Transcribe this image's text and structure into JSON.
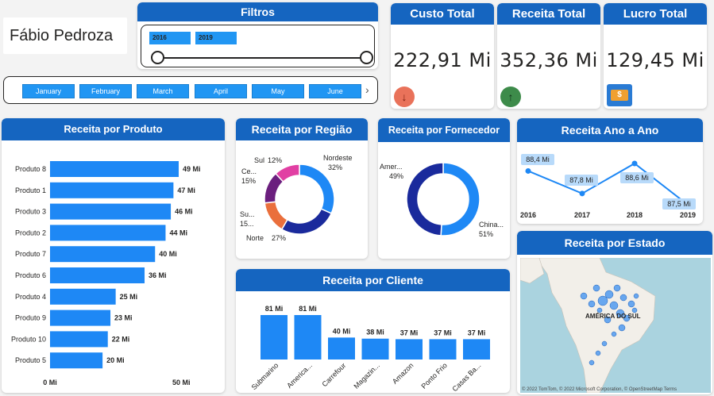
{
  "user": {
    "name": "Fábio Pedroza"
  },
  "filters": {
    "title": "Filtros",
    "year_start": "2016",
    "year_end": "2019",
    "months": [
      "January",
      "February",
      "March",
      "April",
      "May",
      "June"
    ]
  },
  "kpis": [
    {
      "title": "Custo Total",
      "value": "222,91 Mi",
      "icon": "down-arrow-icon",
      "color": "#e9725a"
    },
    {
      "title": "Receita Total",
      "value": "352,36 Mi",
      "icon": "up-arrow-icon",
      "color": "#3d8b4a"
    },
    {
      "title": "Lucro Total",
      "value": "129,45 Mi",
      "icon": "money-icon",
      "color": "#f0a030"
    }
  ],
  "colors": {
    "header": "#1565c0",
    "bar": "#1e88f5",
    "navy": "#1a2a9c"
  },
  "chart_data": [
    {
      "type": "bar",
      "title": "Receita por Produto",
      "orientation": "horizontal",
      "categories": [
        "Produto 8",
        "Produto 1",
        "Produto 3",
        "Produto 2",
        "Produto 7",
        "Produto 6",
        "Produto 4",
        "Produto 9",
        "Produto 10",
        "Produto 5"
      ],
      "values": [
        49,
        47,
        46,
        44,
        40,
        36,
        25,
        23,
        22,
        20
      ],
      "labels": [
        "49 Mi",
        "47 Mi",
        "46 Mi",
        "44 Mi",
        "40 Mi",
        "36 Mi",
        "25 Mi",
        "23 Mi",
        "22 Mi",
        "20 Mi"
      ],
      "xticks": [
        "0 Mi",
        "50 Mi"
      ],
      "xlim": [
        0,
        50
      ]
    },
    {
      "type": "pie",
      "title": "Receita por Região",
      "slices": [
        {
          "name": "Nordeste",
          "value": 32,
          "label": "Nordeste 32%",
          "color": "#1e88f5"
        },
        {
          "name": "Norte",
          "value": 27,
          "label": "Norte 27%",
          "color": "#1a2a9c"
        },
        {
          "name": "Su...",
          "value": 15,
          "label": "Su... 15...",
          "color": "#ea6f3c"
        },
        {
          "name": "Ce...",
          "value": 15,
          "label": "Ce... 15%",
          "color": "#6b1f7e"
        },
        {
          "name": "Sul",
          "value": 12,
          "label": "Sul 12%",
          "color": "#e13fa3"
        }
      ]
    },
    {
      "type": "pie",
      "title": "Receita por Fornecedor",
      "slices": [
        {
          "name": "China...",
          "value": 51,
          "label": "China... 51%",
          "color": "#1e88f5"
        },
        {
          "name": "Amer...",
          "value": 49,
          "label": "Amer... 49%",
          "color": "#1a2a9c"
        }
      ]
    },
    {
      "type": "line",
      "title": "Receita Ano a Ano",
      "x": [
        "2016",
        "2017",
        "2018",
        "2019"
      ],
      "values": [
        88.4,
        87.8,
        88.6,
        87.5
      ],
      "labels": [
        "88,4 Mi",
        "87,8 Mi",
        "88,6 Mi",
        "87,5 Mi"
      ]
    },
    {
      "type": "bar",
      "title": "Receita por Cliente",
      "categories": [
        "Submarino",
        "America...",
        "Carrefour",
        "Magazin...",
        "Amazon",
        "Ponto Frio",
        "Casas Ba..."
      ],
      "values": [
        81,
        81,
        40,
        38,
        37,
        37,
        37
      ],
      "labels": [
        "81 Mi",
        "81 Mi",
        "40 Mi",
        "38 Mi",
        "37 Mi",
        "37 Mi",
        "37 Mi"
      ]
    }
  ],
  "map": {
    "title": "Receita por Estado",
    "region_label": "AMÉRICA DO SUL",
    "attribution": "© 2022 TomTom, © 2022 Microsoft Corporation, © OpenStreetMap Terms"
  }
}
